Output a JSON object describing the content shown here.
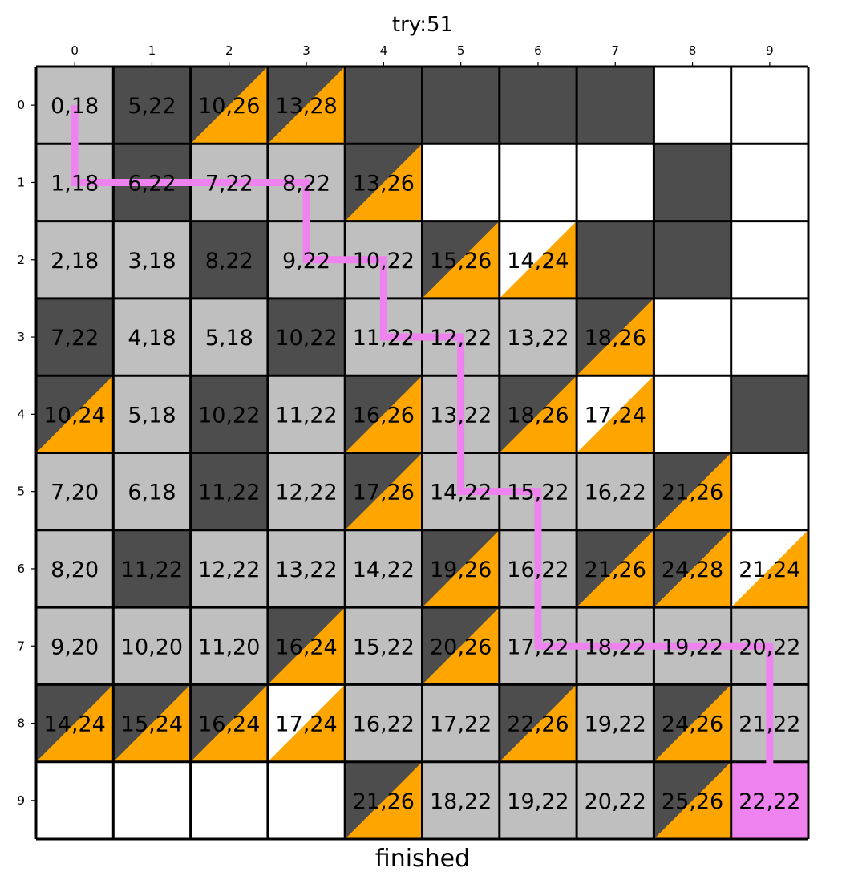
{
  "title": "try:51",
  "footer": "finished",
  "colors": {
    "obstacle": "#4d4d4d",
    "visited": "#bfbfbf",
    "empty": "#ffffff",
    "frontier": "#ffa500",
    "goal": "#ee82ee",
    "path": "#ee82ee",
    "gridline": "#000000"
  },
  "legend": {
    "O": "obstacle",
    "V": "visited",
    "E": "empty",
    "F": "frontier (dark upper-left)",
    "W": "frontier (white upper-left)",
    "G": "goal"
  },
  "col_labels": [
    "0",
    "1",
    "2",
    "3",
    "4",
    "5",
    "6",
    "7",
    "8",
    "9"
  ],
  "row_labels": [
    "0",
    "1",
    "2",
    "3",
    "4",
    "5",
    "6",
    "7",
    "8",
    "9"
  ],
  "grid": [
    [
      {
        "type": "V",
        "label": "0,18"
      },
      {
        "type": "O",
        "label": "5,22"
      },
      {
        "type": "F",
        "label": "10,26"
      },
      {
        "type": "F",
        "label": "13,28"
      },
      {
        "type": "O",
        "label": ""
      },
      {
        "type": "O",
        "label": ""
      },
      {
        "type": "O",
        "label": ""
      },
      {
        "type": "O",
        "label": ""
      },
      {
        "type": "E",
        "label": ""
      },
      {
        "type": "E",
        "label": ""
      }
    ],
    [
      {
        "type": "V",
        "label": "1,18"
      },
      {
        "type": "O",
        "label": "6,22"
      },
      {
        "type": "V",
        "label": "7,22"
      },
      {
        "type": "V",
        "label": "8,22"
      },
      {
        "type": "F",
        "label": "13,26"
      },
      {
        "type": "E",
        "label": ""
      },
      {
        "type": "E",
        "label": ""
      },
      {
        "type": "E",
        "label": ""
      },
      {
        "type": "O",
        "label": ""
      },
      {
        "type": "E",
        "label": ""
      }
    ],
    [
      {
        "type": "V",
        "label": "2,18"
      },
      {
        "type": "V",
        "label": "3,18"
      },
      {
        "type": "O",
        "label": "8,22"
      },
      {
        "type": "V",
        "label": "9,22"
      },
      {
        "type": "V",
        "label": "10,22"
      },
      {
        "type": "F",
        "label": "15,26"
      },
      {
        "type": "W",
        "label": "14,24"
      },
      {
        "type": "O",
        "label": ""
      },
      {
        "type": "O",
        "label": ""
      },
      {
        "type": "E",
        "label": ""
      }
    ],
    [
      {
        "type": "O",
        "label": "7,22"
      },
      {
        "type": "V",
        "label": "4,18"
      },
      {
        "type": "V",
        "label": "5,18"
      },
      {
        "type": "O",
        "label": "10,22"
      },
      {
        "type": "V",
        "label": "11,22"
      },
      {
        "type": "V",
        "label": "12,22"
      },
      {
        "type": "V",
        "label": "13,22"
      },
      {
        "type": "F",
        "label": "18,26"
      },
      {
        "type": "E",
        "label": ""
      },
      {
        "type": "E",
        "label": ""
      }
    ],
    [
      {
        "type": "F",
        "label": "10,24"
      },
      {
        "type": "V",
        "label": "5,18"
      },
      {
        "type": "O",
        "label": "10,22"
      },
      {
        "type": "V",
        "label": "11,22"
      },
      {
        "type": "F",
        "label": "16,26"
      },
      {
        "type": "V",
        "label": "13,22"
      },
      {
        "type": "F",
        "label": "18,26"
      },
      {
        "type": "W",
        "label": "17,24"
      },
      {
        "type": "E",
        "label": ""
      },
      {
        "type": "O",
        "label": ""
      }
    ],
    [
      {
        "type": "V",
        "label": "7,20"
      },
      {
        "type": "V",
        "label": "6,18"
      },
      {
        "type": "O",
        "label": "11,22"
      },
      {
        "type": "V",
        "label": "12,22"
      },
      {
        "type": "F",
        "label": "17,26"
      },
      {
        "type": "V",
        "label": "14,22"
      },
      {
        "type": "V",
        "label": "15,22"
      },
      {
        "type": "V",
        "label": "16,22"
      },
      {
        "type": "F",
        "label": "21,26"
      },
      {
        "type": "E",
        "label": ""
      }
    ],
    [
      {
        "type": "V",
        "label": "8,20"
      },
      {
        "type": "O",
        "label": "11,22"
      },
      {
        "type": "V",
        "label": "12,22"
      },
      {
        "type": "V",
        "label": "13,22"
      },
      {
        "type": "V",
        "label": "14,22"
      },
      {
        "type": "F",
        "label": "19,26"
      },
      {
        "type": "V",
        "label": "16,22"
      },
      {
        "type": "F",
        "label": "21,26"
      },
      {
        "type": "F",
        "label": "24,28"
      },
      {
        "type": "W",
        "label": "21,24"
      }
    ],
    [
      {
        "type": "V",
        "label": "9,20"
      },
      {
        "type": "V",
        "label": "10,20"
      },
      {
        "type": "V",
        "label": "11,20"
      },
      {
        "type": "F",
        "label": "16,24"
      },
      {
        "type": "V",
        "label": "15,22"
      },
      {
        "type": "F",
        "label": "20,26"
      },
      {
        "type": "V",
        "label": "17,22"
      },
      {
        "type": "V",
        "label": "18,22"
      },
      {
        "type": "V",
        "label": "19,22"
      },
      {
        "type": "V",
        "label": "20,22"
      }
    ],
    [
      {
        "type": "F",
        "label": "14,24"
      },
      {
        "type": "F",
        "label": "15,24"
      },
      {
        "type": "F",
        "label": "16,24"
      },
      {
        "type": "W",
        "label": "17,24"
      },
      {
        "type": "V",
        "label": "16,22"
      },
      {
        "type": "V",
        "label": "17,22"
      },
      {
        "type": "F",
        "label": "22,26"
      },
      {
        "type": "V",
        "label": "19,22"
      },
      {
        "type": "F",
        "label": "24,26"
      },
      {
        "type": "V",
        "label": "21,22"
      }
    ],
    [
      {
        "type": "E",
        "label": ""
      },
      {
        "type": "E",
        "label": ""
      },
      {
        "type": "E",
        "label": ""
      },
      {
        "type": "E",
        "label": ""
      },
      {
        "type": "F",
        "label": "21,26"
      },
      {
        "type": "V",
        "label": "18,22"
      },
      {
        "type": "V",
        "label": "19,22"
      },
      {
        "type": "V",
        "label": "20,22"
      },
      {
        "type": "F",
        "label": "25,26"
      },
      {
        "type": "G",
        "label": "22,22"
      }
    ]
  ],
  "path": [
    [
      0,
      0
    ],
    [
      1,
      0
    ],
    [
      1,
      1
    ],
    [
      1,
      2
    ],
    [
      1,
      3
    ],
    [
      2,
      3
    ],
    [
      2,
      4
    ],
    [
      3,
      4
    ],
    [
      3,
      5
    ],
    [
      4,
      5
    ],
    [
      5,
      5
    ],
    [
      5,
      6
    ],
    [
      6,
      6
    ],
    [
      7,
      6
    ],
    [
      7,
      7
    ],
    [
      7,
      8
    ],
    [
      7,
      9
    ],
    [
      8,
      9
    ],
    [
      9,
      9
    ]
  ]
}
